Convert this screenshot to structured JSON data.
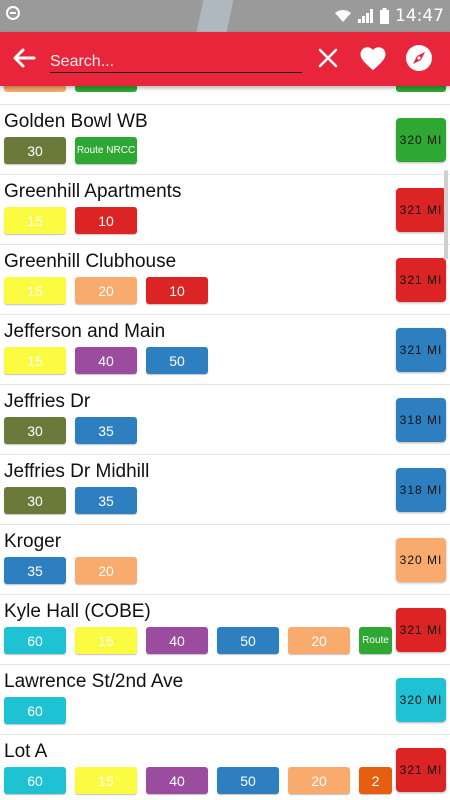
{
  "status_bar": {
    "time": "14:47"
  },
  "toolbar": {
    "search_placeholder": "Search..."
  },
  "colors": {
    "toolbar": "#e8253a",
    "olive": "#6b7a3a",
    "green": "#2ea832",
    "yellow": "#fbfb42",
    "red": "#dc2424",
    "orange": "#f9ab6d",
    "purple": "#9b4c9e",
    "blue": "#2e7fc0",
    "teal": "#1ec2d2",
    "dark_orange": "#e65e0f"
  },
  "partial_top": {
    "chips": [
      "orange",
      "green"
    ],
    "distance_color": "green"
  },
  "stops": [
    {
      "name": "Golden Bowl WB",
      "distance": "320 MI",
      "distance_color": "green",
      "routes": [
        {
          "label": "30",
          "color": "olive"
        },
        {
          "label": "Route NRCC",
          "color": "green",
          "small": true
        }
      ]
    },
    {
      "name": "Greenhill Apartments",
      "distance": "321 MI",
      "distance_color": "red",
      "routes": [
        {
          "label": "15",
          "color": "yellow"
        },
        {
          "label": "10",
          "color": "red"
        }
      ]
    },
    {
      "name": "Greenhill Clubhouse",
      "distance": "321 MI",
      "distance_color": "red",
      "routes": [
        {
          "label": "15",
          "color": "yellow"
        },
        {
          "label": "20",
          "color": "orange"
        },
        {
          "label": "10",
          "color": "red"
        }
      ]
    },
    {
      "name": "Jefferson and Main",
      "distance": "321 MI",
      "distance_color": "blue",
      "routes": [
        {
          "label": "15",
          "color": "yellow"
        },
        {
          "label": "40",
          "color": "purple"
        },
        {
          "label": "50",
          "color": "blue"
        }
      ]
    },
    {
      "name": "Jeffries Dr",
      "distance": "318 MI",
      "distance_color": "blue",
      "routes": [
        {
          "label": "30",
          "color": "olive"
        },
        {
          "label": "35",
          "color": "blue"
        }
      ]
    },
    {
      "name": "Jeffries Dr Midhill",
      "distance": "318 MI",
      "distance_color": "blue",
      "routes": [
        {
          "label": "30",
          "color": "olive"
        },
        {
          "label": "35",
          "color": "blue"
        }
      ]
    },
    {
      "name": "Kroger",
      "distance": "320 MI",
      "distance_color": "orange",
      "routes": [
        {
          "label": "35",
          "color": "blue"
        },
        {
          "label": "20",
          "color": "orange"
        }
      ]
    },
    {
      "name": "Kyle Hall (COBE)",
      "distance": "321 MI",
      "distance_color": "red",
      "routes": [
        {
          "label": "60",
          "color": "teal"
        },
        {
          "label": "15",
          "color": "yellow"
        },
        {
          "label": "40",
          "color": "purple"
        },
        {
          "label": "50",
          "color": "blue"
        },
        {
          "label": "20",
          "color": "orange"
        },
        {
          "label": "Route",
          "color": "green",
          "small": true
        }
      ]
    },
    {
      "name": "Lawrence St/2nd Ave",
      "distance": "320 MI",
      "distance_color": "teal",
      "routes": [
        {
          "label": "60",
          "color": "teal"
        }
      ]
    },
    {
      "name": "Lot A",
      "distance": "321 MI",
      "distance_color": "red",
      "routes": [
        {
          "label": "60",
          "color": "teal"
        },
        {
          "label": "15",
          "color": "yellow"
        },
        {
          "label": "40",
          "color": "purple"
        },
        {
          "label": "50",
          "color": "blue"
        },
        {
          "label": "20",
          "color": "orange"
        },
        {
          "label": "2",
          "color": "dark_orange"
        }
      ]
    }
  ]
}
